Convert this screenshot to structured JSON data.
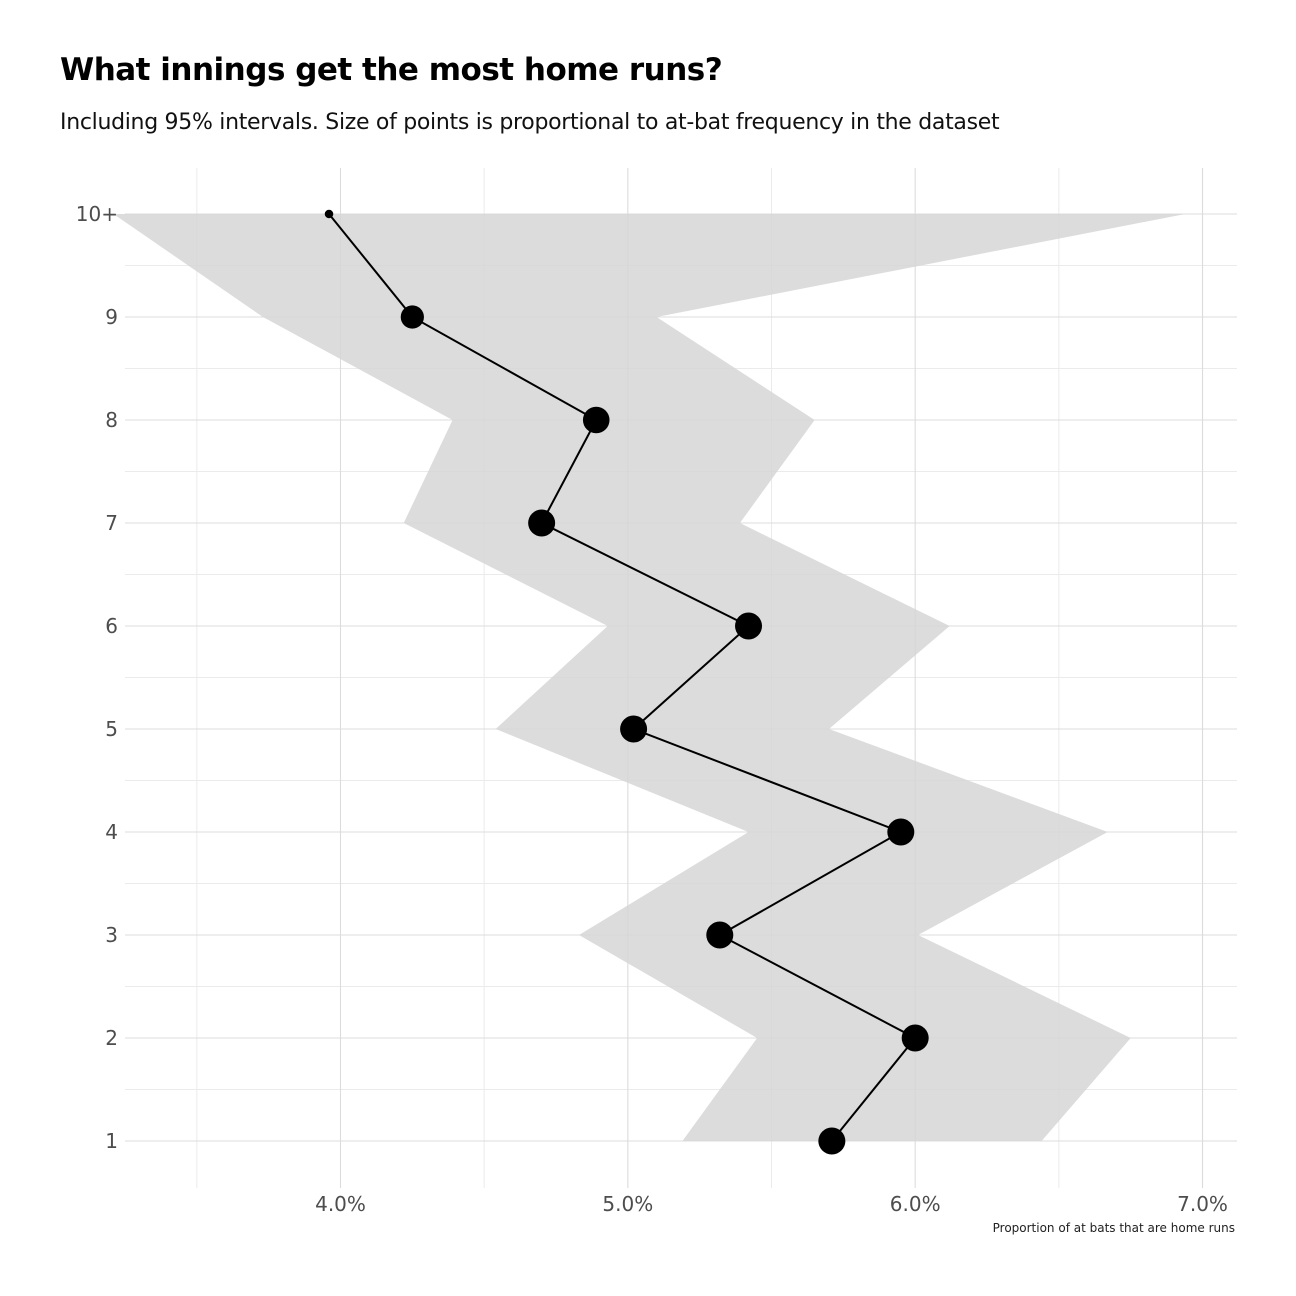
{
  "chart_data": {
    "type": "line",
    "title": "What innings get the most home runs?",
    "subtitle": "Including 95% intervals. Size of points is proportional to at-bat frequency in the dataset",
    "xlabel": "Proportion of at bats that are home runs",
    "ylabel": "",
    "categories": [
      "1",
      "2",
      "3",
      "4",
      "5",
      "6",
      "7",
      "8",
      "9",
      "10+"
    ],
    "x_ticks": [
      "4.0%",
      "5.0%",
      "6.0%",
      "7.0%"
    ],
    "xlim": [
      0.0325,
      0.0712
    ],
    "series": [
      {
        "values": [
          0.0571,
          0.06,
          0.0532,
          0.0595,
          0.0502,
          0.0542,
          0.047,
          0.0489,
          0.0425,
          0.0396
        ],
        "lower": [
          0.0519,
          0.0545,
          0.0483,
          0.0542,
          0.0454,
          0.0493,
          0.0422,
          0.0439,
          0.0373,
          0.0321
        ],
        "upper": [
          0.0644,
          0.0675,
          0.0601,
          0.0667,
          0.057,
          0.0612,
          0.0539,
          0.0565,
          0.051,
          0.0694
        ],
        "weight": [
          1.0,
          1.0,
          1.0,
          1.0,
          1.0,
          1.0,
          1.0,
          0.98,
          0.82,
          0.12
        ]
      }
    ],
    "ribbon_color": "#d6d6d6",
    "line_color": "#000000",
    "point_color": "#000000",
    "grid": true
  }
}
